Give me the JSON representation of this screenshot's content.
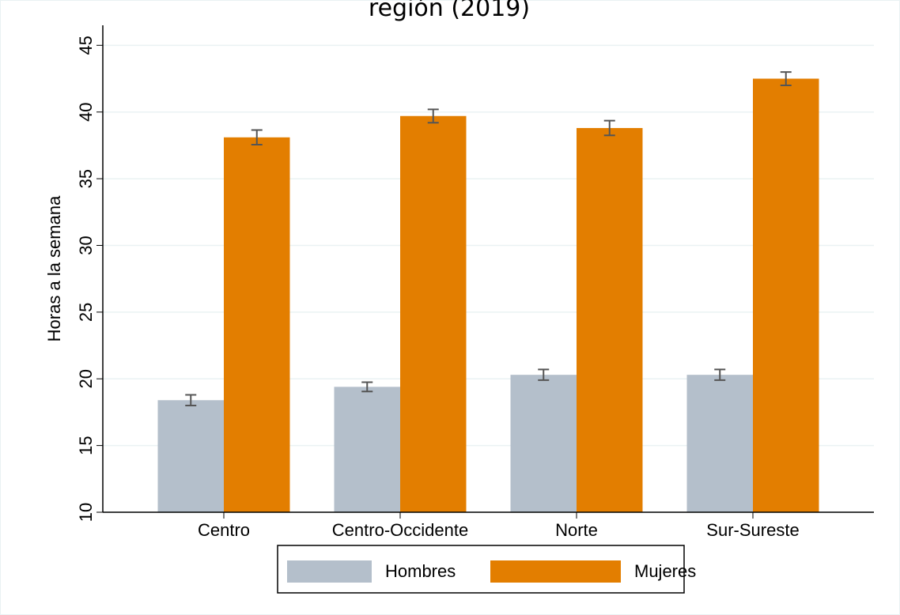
{
  "chart_data": {
    "type": "bar",
    "title": "región (2019)",
    "ylabel": "Horas a la semana",
    "categories": [
      "Centro",
      "Centro-Occidente",
      "Norte",
      "Sur-Sureste"
    ],
    "series": [
      {
        "name": "Hombres",
        "color": "#b4bfcb",
        "values": [
          18.4,
          19.4,
          20.3,
          20.3
        ],
        "errors": [
          0.4,
          0.35,
          0.4,
          0.4
        ]
      },
      {
        "name": "Mujeres",
        "color": "#e37e00",
        "values": [
          38.1,
          39.7,
          38.8,
          42.5
        ],
        "errors": [
          0.55,
          0.5,
          0.55,
          0.5
        ]
      }
    ],
    "ylim": [
      10,
      46.5
    ],
    "yticks": [
      10,
      15,
      20,
      25,
      30,
      35,
      40,
      45
    ],
    "grid": true,
    "legend": "bottom"
  }
}
